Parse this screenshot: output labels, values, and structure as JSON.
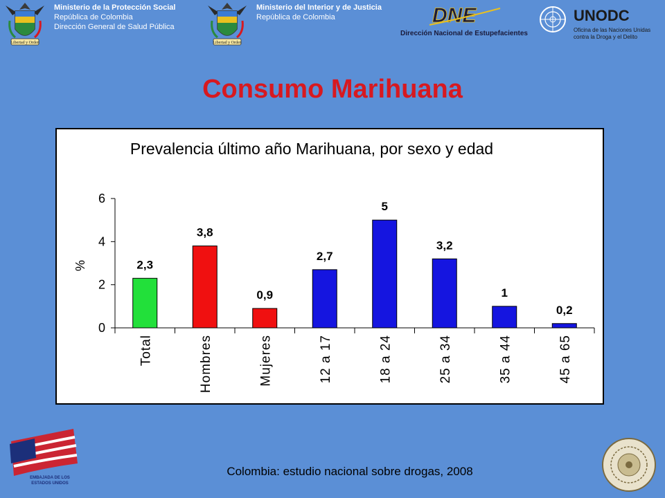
{
  "header": {
    "ministry_social": {
      "line1": "Ministerio de la Protección Social",
      "line2": "República de Colombia",
      "line3": "Dirección General de Salud Pública"
    },
    "ministry_interior": {
      "line1": "Ministerio del Interior y de Justicia",
      "line2": "República de Colombia"
    },
    "crest_motto": "Libertad y Orden",
    "dne": {
      "acronym": "DNE",
      "name": "Dirección Nacional de Estupefacientes"
    },
    "unodc": {
      "acronym": "UNODC",
      "line1": "Oficina de las Naciones Unidas",
      "line2": "contra la Droga y el Delito"
    }
  },
  "page_title": "Consumo Marihuana",
  "chart_data": {
    "type": "bar",
    "title": "Prevalencia último año Marihuana, por sexo y edad",
    "xlabel": "",
    "ylabel": "%",
    "ylim": [
      0,
      6
    ],
    "yticks": [
      "0",
      "2",
      "4",
      "6"
    ],
    "grid": false,
    "categories": [
      "Total",
      "Hombres",
      "Mujeres",
      "12 a 17",
      "18 a 24",
      "25 a 34",
      "35 a 44",
      "45 a 65"
    ],
    "values": [
      2.3,
      3.8,
      0.9,
      2.7,
      5,
      3.2,
      1,
      0.2
    ],
    "data_labels": [
      "2,3",
      "3,8",
      "0,9",
      "2,7",
      "5",
      "3,2",
      "1",
      "0,2"
    ],
    "colors": [
      "#22e03a",
      "#f01010",
      "#f01010",
      "#1515e0",
      "#1515e0",
      "#1515e0",
      "#1515e0",
      "#1515e0"
    ]
  },
  "footer": {
    "source": "Colombia: estudio nacional sobre drogas, 2008",
    "embassy_line1": "EMBAJADA DE LOS",
    "embassy_line2": "ESTADOS UNIDOS"
  }
}
